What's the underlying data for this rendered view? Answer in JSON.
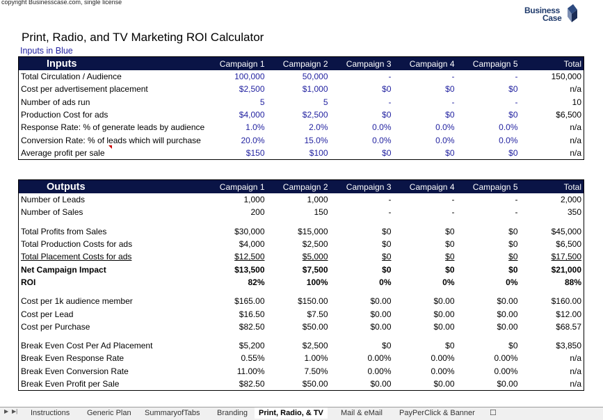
{
  "copyright": "copyright Businesscase.com, single license",
  "logo": {
    "line1": "Business",
    "line2": "Case"
  },
  "title": "Print, Radio, and TV Marketing ROI Calculator",
  "subtitle": "Inputs in Blue",
  "inputs": {
    "header": [
      "Inputs",
      "Campaign 1",
      "Campaign 2",
      "Campaign 3",
      "Campaign 4",
      "Campaign 5",
      "Total"
    ],
    "rows": [
      [
        "Total Circulation / Audience",
        "100,000",
        "50,000",
        "-",
        "-",
        "-",
        "150,000"
      ],
      [
        "Cost per advertisement placement",
        "$2,500",
        "$1,000",
        "$0",
        "$0",
        "$0",
        "n/a"
      ],
      [
        "Number of ads run",
        "5",
        "5",
        "-",
        "-",
        "-",
        "10"
      ],
      [
        "Production Cost for ads",
        "$4,000",
        "$2,500",
        "$0",
        "$0",
        "$0",
        "$6,500"
      ],
      [
        "Response Rate: % of generate leads by audience",
        "1.0%",
        "2.0%",
        "0.0%",
        "0.0%",
        "0.0%",
        "n/a"
      ],
      [
        "Conversion Rate: % of leads which will purchase",
        "20.0%",
        "15.0%",
        "0.0%",
        "0.0%",
        "0.0%",
        "n/a"
      ],
      [
        "Average profit per sale",
        "$150",
        "$100",
        "$0",
        "$0",
        "$0",
        "n/a"
      ]
    ]
  },
  "outputs": {
    "header": [
      "Outputs",
      "Campaign 1",
      "Campaign 2",
      "Campaign 3",
      "Campaign 4",
      "Campaign 5",
      "Total"
    ],
    "groups": [
      [
        [
          "Number of Leads",
          "1,000",
          "1,000",
          "-",
          "-",
          "-",
          "2,000"
        ],
        [
          "Number of Sales",
          "200",
          "150",
          "-",
          "-",
          "-",
          "350"
        ]
      ],
      [
        [
          "Total Profits from Sales",
          "$30,000",
          "$15,000",
          "$0",
          "$0",
          "$0",
          "$45,000"
        ],
        [
          "Total Production Costs for ads",
          "$4,000",
          "$2,500",
          "$0",
          "$0",
          "$0",
          "$6,500"
        ],
        [
          "Total Placement Costs for ads",
          "$12,500",
          "$5,000",
          "$0",
          "$0",
          "$0",
          "$17,500"
        ],
        [
          "Net Campaign Impact",
          "$13,500",
          "$7,500",
          "$0",
          "$0",
          "$0",
          "$21,000"
        ],
        [
          "ROI",
          "82%",
          "100%",
          "0%",
          "0%",
          "0%",
          "88%"
        ]
      ],
      [
        [
          "Cost per 1k audience member",
          "$165.00",
          "$150.00",
          "$0.00",
          "$0.00",
          "$0.00",
          "$160.00"
        ],
        [
          "Cost per Lead",
          "$16.50",
          "$7.50",
          "$0.00",
          "$0.00",
          "$0.00",
          "$12.00"
        ],
        [
          "Cost per Purchase",
          "$82.50",
          "$50.00",
          "$0.00",
          "$0.00",
          "$0.00",
          "$68.57"
        ]
      ],
      [
        [
          "Break Even Cost Per Ad Placement",
          "$5,200",
          "$2,500",
          "$0",
          "$0",
          "$0",
          "$3,850"
        ],
        [
          "Break Even Response Rate",
          "0.55%",
          "1.00%",
          "0.00%",
          "0.00%",
          "0.00%",
          "n/a"
        ],
        [
          "Break Even Conversion Rate",
          "11.00%",
          "7.50%",
          "0.00%",
          "0.00%",
          "0.00%",
          "n/a"
        ],
        [
          "Break Even Profit per Sale",
          "$82.50",
          "$50.00",
          "$0.00",
          "$0.00",
          "$0.00",
          "n/a"
        ]
      ]
    ]
  },
  "sheet_tabs": [
    "Instructions",
    "Generic Plan",
    "SummaryofTabs",
    "Branding",
    "Print, Radio, & TV",
    "Mail & eMail",
    "PayPerClick & Banner"
  ],
  "active_tab": "Print, Radio, & TV",
  "colors": {
    "header_bg": "#0a1446",
    "input_blue": "#1f1f9f"
  }
}
